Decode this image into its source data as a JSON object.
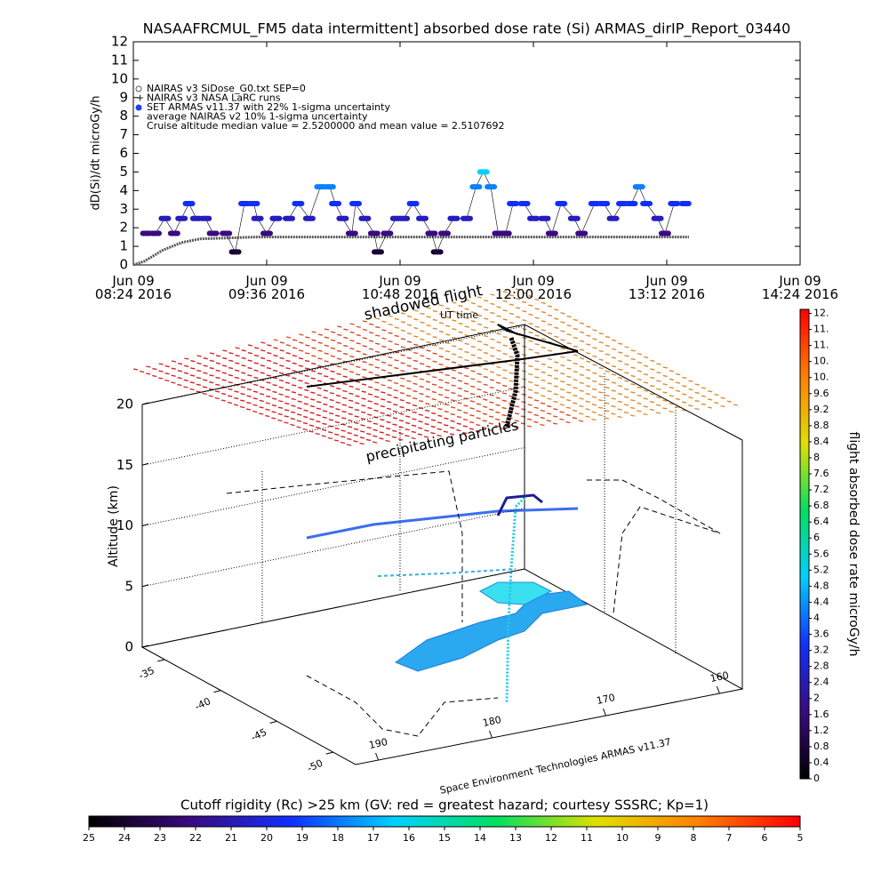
{
  "chart_data": [
    {
      "type": "scatter",
      "title": "NASAAFRCMUL_FM5 data intermittent] absorbed dose rate (Si) ARMAS_dirIP_Report_03440",
      "ylabel": "dD(Si)/dt microGy/h",
      "xlim": [
        "2016-06-09T08:24",
        "2016-06-09T14:24"
      ],
      "xticks": [
        {
          "value": "2016-06-09T08:24",
          "label": "Jun 09\n08:24 2016"
        },
        {
          "value": "2016-06-09T09:36",
          "label": "Jun 09\n09:36 2016"
        },
        {
          "value": "2016-06-09T10:48",
          "label": "Jun 09\n10:48 2016"
        },
        {
          "value": "2016-06-09T12:00",
          "label": "Jun 09\n12:00 2016"
        },
        {
          "value": "2016-06-09T13:12",
          "label": "Jun 09\n13:12 2016"
        },
        {
          "value": "2016-06-09T14:24",
          "label": "Jun 09\n14:24 2016"
        }
      ],
      "ylim": [
        0,
        12
      ],
      "yticks": [
        0,
        1,
        2,
        3,
        4,
        5,
        6,
        7,
        8,
        9,
        10,
        11,
        12
      ],
      "series": [
        {
          "name": "NAIRAS v3 SiDose_G0.txt SEP=0",
          "color": "#555555",
          "mode": "line",
          "x": [
            "2016-06-09T08:24",
            "2016-06-09T08:30",
            "2016-06-09T08:40",
            "2016-06-09T08:50",
            "2016-06-09T09:00",
            "2016-06-09T09:30",
            "2016-06-09T10:30",
            "2016-06-09T11:30",
            "2016-06-09T12:30",
            "2016-06-09T13:24"
          ],
          "values": [
            0,
            0.2,
            0.8,
            1.2,
            1.4,
            1.5,
            1.5,
            1.5,
            1.5,
            1.5
          ]
        },
        {
          "name": "SET ARMAS v11.37 with 22% 1-sigma uncertainty",
          "color": "#1f3fff",
          "mode": "points",
          "x": [
            "2016-06-09T08:31",
            "2016-06-09T08:36",
            "2016-06-09T08:41",
            "2016-06-09T08:46",
            "2016-06-09T08:50",
            "2016-06-09T08:54",
            "2016-06-09T08:58",
            "2016-06-09T09:03",
            "2016-06-09T09:07",
            "2016-06-09T09:14",
            "2016-06-09T09:19",
            "2016-06-09T09:24",
            "2016-06-09T09:29",
            "2016-06-09T09:31",
            "2016-06-09T09:36",
            "2016-06-09T09:41",
            "2016-06-09T09:48",
            "2016-06-09T09:53",
            "2016-06-09T09:59",
            "2016-06-09T10:05",
            "2016-06-09T10:10",
            "2016-06-09T10:13",
            "2016-06-09T10:17",
            "2016-06-09T10:22",
            "2016-06-09T10:24",
            "2016-06-09T10:29",
            "2016-06-09T10:34",
            "2016-06-09T10:36",
            "2016-06-09T10:41",
            "2016-06-09T10:46",
            "2016-06-09T10:50",
            "2016-06-09T10:55",
            "2016-06-09T11:00",
            "2016-06-09T11:05",
            "2016-06-09T11:08",
            "2016-06-09T11:12",
            "2016-06-09T11:17",
            "2016-06-09T11:24",
            "2016-06-09T11:29",
            "2016-06-09T11:33",
            "2016-06-09T11:37",
            "2016-06-09T11:41",
            "2016-06-09T11:45",
            "2016-06-09T11:49",
            "2016-06-09T11:55",
            "2016-06-09T12:00",
            "2016-06-09T12:06",
            "2016-06-09T12:10",
            "2016-06-09T12:15",
            "2016-06-09T12:22",
            "2016-06-09T12:26",
            "2016-06-09T12:33",
            "2016-06-09T12:38",
            "2016-06-09T12:43",
            "2016-06-09T12:48",
            "2016-06-09T12:53",
            "2016-06-09T12:57",
            "2016-06-09T13:01",
            "2016-06-09T13:07",
            "2016-06-09T13:11",
            "2016-06-09T13:16",
            "2016-06-09T13:22"
          ],
          "values": [
            1.7,
            1.7,
            2.5,
            1.7,
            2.5,
            3.3,
            2.5,
            2.5,
            1.7,
            1.7,
            0.7,
            3.3,
            3.3,
            2.5,
            1.7,
            2.5,
            2.5,
            3.3,
            2.5,
            4.2,
            4.2,
            3.3,
            2.5,
            1.7,
            3.3,
            2.5,
            1.7,
            0.7,
            1.7,
            2.5,
            2.5,
            3.3,
            2.5,
            1.7,
            0.7,
            1.7,
            2.5,
            2.5,
            4.2,
            5.0,
            4.2,
            1.7,
            1.7,
            3.3,
            3.3,
            2.5,
            2.5,
            1.7,
            3.3,
            2.5,
            1.7,
            3.3,
            3.3,
            2.5,
            3.3,
            3.3,
            4.2,
            3.3,
            2.5,
            1.7,
            3.3,
            3.3
          ]
        }
      ],
      "legend_notes": [
        "NAIRAS v3 NASA LaRC runs",
        "average NAIRAS v2 10% 1-sigma uncertainty",
        "Cruise altitude median value = 2.5200000 and mean value = 2.5107692"
      ]
    },
    {
      "type": "surface3d",
      "zlabel": "Altitude (km)",
      "zlim": [
        0,
        20
      ],
      "zticks": [
        0,
        5,
        10,
        15,
        20
      ],
      "xlim": [
        -33,
        -52
      ],
      "xticks": [
        -35,
        -40,
        -45,
        -50
      ],
      "ylim": [
        192,
        158
      ],
      "yticks": [
        190,
        180,
        170,
        160
      ],
      "annotations": [
        "shadowed flight",
        "UT time",
        "precipitating particles",
        "Space Environment Technologies ARMAS v11.37"
      ]
    },
    {
      "type": "colorbar",
      "label": "flight absorbed dose rate microGy/h",
      "colors": [
        "#000000",
        "#3a0a80",
        "#1030ff",
        "#00d0ff",
        "#00e060",
        "#e0e000",
        "#ff8000",
        "#ff0000"
      ],
      "ylim": [
        0,
        11.7
      ],
      "yticks": [
        0.0,
        0.4,
        0.8,
        1.2,
        1.6,
        2.0,
        2.4,
        2.8,
        3.2,
        3.6,
        4.0,
        4.4,
        4.8,
        5.2,
        5.6,
        6.0,
        6.4,
        6.8,
        7.2,
        7.6,
        8.0,
        8.4,
        8.8,
        9.2,
        9.6,
        {
          "value": 10.0,
          "label": "10."
        },
        {
          "value": 10.4,
          "label": "10."
        },
        {
          "value": 10.8,
          "label": "11."
        },
        {
          "value": 11.2,
          "label": "11."
        },
        {
          "value": 11.6,
          "label": "12."
        }
      ]
    },
    {
      "type": "colorbar",
      "label": "Cutoff rigidity (Rc) >25 km (GV: red = greatest hazard; courtesy SSSRC; Kp=1)",
      "colors": [
        "#000000",
        "#3a0a80",
        "#1030ff",
        "#00d0ff",
        "#00e060",
        "#e0e000",
        "#ff8000",
        "#ff0000"
      ],
      "xlim": [
        25,
        5
      ],
      "xticks": [
        25,
        24,
        23,
        22,
        21,
        20,
        19,
        18,
        17,
        16,
        15,
        14,
        13,
        12,
        11,
        10,
        9,
        8,
        7,
        6,
        5
      ]
    }
  ]
}
